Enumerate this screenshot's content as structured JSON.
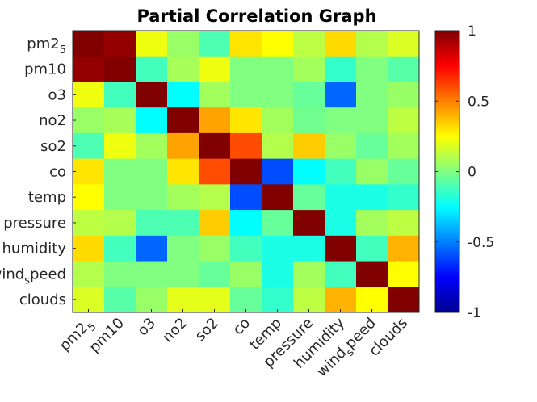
{
  "chart_data": {
    "type": "heatmap",
    "title": "Partial Correlation Graph",
    "variables": [
      {
        "base": "pm2",
        "sub": "5"
      },
      {
        "base": "pm10",
        "sub": ""
      },
      {
        "base": "o3",
        "sub": ""
      },
      {
        "base": "no2",
        "sub": ""
      },
      {
        "base": "so2",
        "sub": ""
      },
      {
        "base": "co",
        "sub": ""
      },
      {
        "base": "temp",
        "sub": ""
      },
      {
        "base": "pressure",
        "sub": ""
      },
      {
        "base": "humidity",
        "sub": ""
      },
      {
        "base": "wind",
        "sub": "s",
        "tail": "peed"
      },
      {
        "base": "clouds",
        "sub": ""
      }
    ],
    "matrix": [
      [
        1.0,
        0.96,
        0.22,
        0.05,
        -0.1,
        0.3,
        0.25,
        0.12,
        0.32,
        0.1,
        0.18
      ],
      [
        0.96,
        1.0,
        -0.12,
        0.08,
        0.22,
        0.0,
        0.0,
        0.07,
        -0.15,
        0.0,
        -0.08
      ],
      [
        0.22,
        -0.12,
        1.0,
        -0.25,
        0.07,
        0.0,
        0.0,
        -0.05,
        -0.55,
        0.0,
        0.05
      ],
      [
        0.05,
        0.08,
        -0.25,
        1.0,
        0.43,
        0.3,
        0.07,
        -0.03,
        0.0,
        0.0,
        0.12
      ],
      [
        -0.1,
        0.22,
        0.07,
        0.43,
        1.0,
        0.6,
        0.1,
        0.35,
        0.05,
        -0.05,
        0.07
      ],
      [
        0.3,
        0.0,
        0.0,
        0.3,
        0.6,
        1.0,
        -0.6,
        -0.25,
        -0.12,
        0.05,
        -0.05
      ],
      [
        0.25,
        0.0,
        0.0,
        0.07,
        0.1,
        -0.6,
        1.0,
        -0.05,
        -0.2,
        -0.2,
        -0.15
      ],
      [
        0.12,
        0.1,
        -0.1,
        -0.1,
        0.35,
        -0.25,
        -0.05,
        1.0,
        -0.2,
        0.07,
        0.12
      ],
      [
        0.32,
        -0.12,
        -0.55,
        0.0,
        0.05,
        -0.12,
        -0.2,
        -0.2,
        1.0,
        -0.12,
        0.4
      ],
      [
        0.1,
        0.0,
        0.0,
        0.0,
        -0.05,
        0.05,
        -0.2,
        0.07,
        -0.12,
        1.0,
        0.25
      ],
      [
        0.18,
        -0.08,
        0.05,
        0.2,
        0.2,
        -0.05,
        -0.15,
        0.12,
        0.4,
        0.25,
        1.0
      ]
    ],
    "colormap": "jet",
    "clim": [
      -1,
      1
    ],
    "colorbar": {
      "ticks": [
        1,
        0.5,
        0,
        -0.5,
        -1
      ],
      "tick_labels": [
        "1",
        "0.5",
        "0",
        "-0.5",
        "-1"
      ],
      "location": "right"
    }
  }
}
